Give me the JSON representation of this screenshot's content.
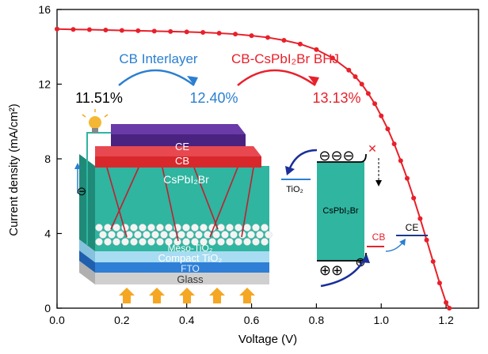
{
  "chart_data": {
    "type": "line",
    "xlabel": "Voltage (V)",
    "ylabel": "Current density (mA/cm²)",
    "xlim": [
      0.0,
      1.3
    ],
    "ylim": [
      0,
      16
    ],
    "xticks": [
      "0.0",
      "0.2",
      "0.4",
      "0.6",
      "0.8",
      "1.0",
      "1.2"
    ],
    "yticks": [
      "0",
      "4",
      "8",
      "12",
      "16"
    ],
    "grid": false,
    "series": [
      {
        "color": "#e8202a",
        "x": [
          0.0,
          0.05,
          0.1,
          0.15,
          0.2,
          0.25,
          0.3,
          0.35,
          0.4,
          0.45,
          0.5,
          0.55,
          0.6,
          0.65,
          0.7,
          0.75,
          0.8,
          0.85,
          0.9,
          0.92,
          0.94,
          0.96,
          0.98,
          1.0,
          1.02,
          1.04,
          1.06,
          1.08,
          1.1,
          1.12,
          1.14,
          1.16,
          1.18,
          1.2,
          1.21
        ],
        "y": [
          14.95,
          14.93,
          14.92,
          14.9,
          14.88,
          14.86,
          14.84,
          14.82,
          14.8,
          14.77,
          14.73,
          14.68,
          14.6,
          14.5,
          14.35,
          14.15,
          13.85,
          13.4,
          12.75,
          12.4,
          12.0,
          11.5,
          10.95,
          10.3,
          9.6,
          8.8,
          7.9,
          6.95,
          5.9,
          4.8,
          3.65,
          2.5,
          1.35,
          0.3,
          0.0
        ]
      }
    ]
  },
  "inset": {
    "cb_interlayer_label": "CB Interlayer",
    "cb_bhj_label": "CB-CsPbI₂Br BHJ",
    "eff_1": "11.51%",
    "eff_2": "12.40%",
    "eff_3": "13.13%",
    "layer_ce": "CE",
    "layer_cb": "CB",
    "layer_perov": "CsPbI₂Br",
    "layer_meso": "Meso-TiO₂",
    "layer_compact": "Compact TiO₂",
    "layer_fto": "FTO",
    "layer_glass": "Glass",
    "electron_symbol": "⊖",
    "band_tio2": "TiO₂",
    "band_perov": "CsPbI₂Br",
    "band_cb": "CB",
    "band_ce": "CE",
    "band_electrons": "⊖⊖⊖",
    "band_holes": "⊕⊕",
    "band_hole_single": "⊕",
    "cross_mark": "✕",
    "colors": {
      "blue_arrow": "#2a7fd0",
      "red_arrow": "#e8202a",
      "ce_top": "#6a3aa8",
      "ce_side": "#4a2280",
      "cb_layer": "#d8282c",
      "perov": "#2fb5a0",
      "perov_side": "#1f8a78",
      "compact": "#a8dcf2",
      "fto": "#2f7fd6",
      "glass": "#c9c9c9",
      "sun_arrow": "#f5a623"
    }
  }
}
